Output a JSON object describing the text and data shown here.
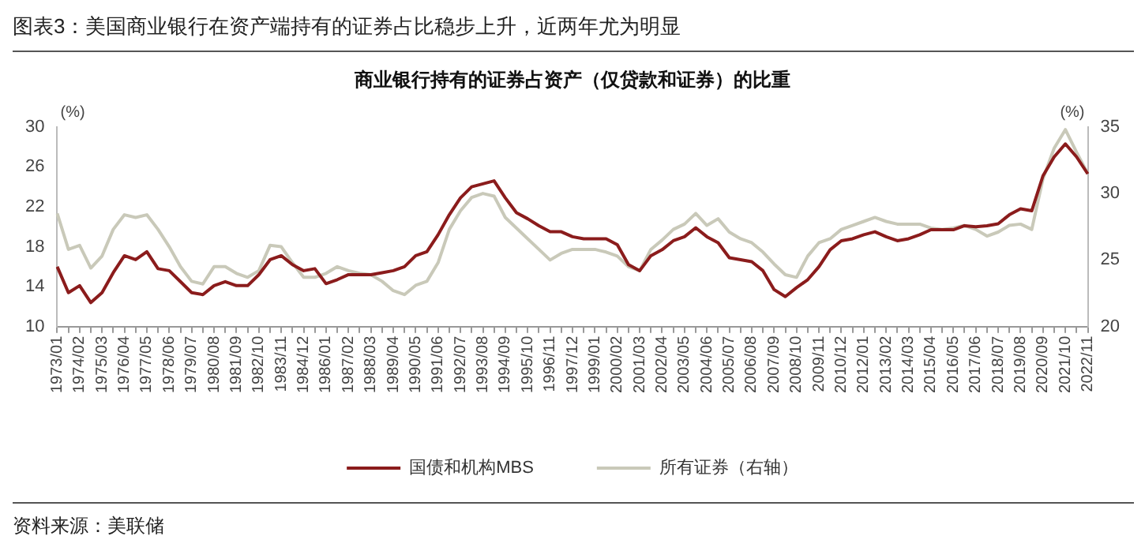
{
  "chart_data": {
    "type": "line",
    "title": "图表3：美国商业银行在资产端持有的证券占比稳步上升，近两年尤为明显",
    "subtitle": "商业银行持有的证券占资产（仅贷款和证券）的比重",
    "ylabel": "(%)",
    "y2label": "(%)",
    "annotations": [
      "资料来源：美联储"
    ],
    "categories": [
      "1973/01",
      null,
      "1974/02",
      null,
      "1975/03",
      null,
      "1976/04",
      null,
      "1977/05",
      null,
      "1978/06",
      null,
      "1979/07",
      null,
      "1980/08",
      null,
      "1981/09",
      null,
      "1982/10",
      null,
      "1983/11",
      null,
      "1984/12",
      null,
      "1986/01",
      null,
      "1987/02",
      null,
      "1988/03",
      null,
      "1989/04",
      null,
      "1990/05",
      null,
      "1991/06",
      null,
      "1992/07",
      null,
      "1993/08",
      null,
      "1994/09",
      null,
      "1995/10",
      null,
      "1996/11",
      null,
      "1997/12",
      null,
      "1999/01",
      null,
      "2000/02",
      null,
      "2001/03",
      null,
      "2002/04",
      null,
      "2003/05",
      null,
      "2004/06",
      null,
      "2005/07",
      null,
      "2006/08",
      null,
      "2007/09",
      null,
      "2008/10",
      null,
      "2009/11",
      null,
      "2010/12",
      null,
      "2012/01",
      null,
      "2013/02",
      null,
      "2014/03",
      null,
      "2015/04",
      null,
      "2016/05",
      null,
      "2017/06",
      null,
      "2018/07",
      null,
      "2019/08",
      null,
      "2020/09",
      null,
      "2021/10",
      null,
      "2022/11"
    ],
    "series": [
      {
        "name": "国债和机构MBS",
        "color": "#8b1c1c",
        "values": [
          16.0,
          13.4,
          14.1,
          12.4,
          13.4,
          15.4,
          17.1,
          16.7,
          17.5,
          15.8,
          15.6,
          14.5,
          13.4,
          13.2,
          14.1,
          14.5,
          14.1,
          14.1,
          15.2,
          16.7,
          17.1,
          16.2,
          15.6,
          15.8,
          14.3,
          14.7,
          15.2,
          15.2,
          15.2,
          15.4,
          15.6,
          16.0,
          17.1,
          17.5,
          19.2,
          21.2,
          22.9,
          24.0,
          24.3,
          24.6,
          22.9,
          21.4,
          20.8,
          20.1,
          19.5,
          19.5,
          19.0,
          18.8,
          18.8,
          18.8,
          18.2,
          16.2,
          15.6,
          17.1,
          17.7,
          18.6,
          19.0,
          19.9,
          19.0,
          18.4,
          16.9,
          16.7,
          16.5,
          15.6,
          13.7,
          13.0,
          13.9,
          14.7,
          16.0,
          17.7,
          18.6,
          18.8,
          19.2,
          19.5,
          19.0,
          18.6,
          18.8,
          19.2,
          19.7,
          19.7,
          19.7,
          20.1,
          20.0,
          20.1,
          20.3,
          21.2,
          21.8,
          21.6,
          25.1,
          27.0,
          28.3,
          27.0,
          25.3
        ]
      },
      {
        "name": "所有证券（右轴）",
        "color": "#c9c9b9",
        "axis": "y2",
        "values": [
          28.5,
          25.8,
          26.1,
          24.4,
          25.3,
          27.3,
          28.4,
          28.2,
          28.4,
          27.3,
          26.0,
          24.5,
          23.4,
          23.2,
          24.5,
          24.5,
          24.0,
          23.7,
          24.2,
          26.1,
          26.0,
          24.8,
          23.7,
          23.7,
          24.0,
          24.5,
          24.2,
          24.0,
          23.9,
          23.4,
          22.7,
          22.4,
          23.1,
          23.4,
          24.8,
          27.3,
          28.7,
          29.7,
          30.0,
          29.8,
          28.2,
          27.4,
          26.6,
          25.8,
          25.0,
          25.5,
          25.8,
          25.8,
          25.8,
          25.6,
          25.3,
          24.5,
          24.2,
          25.8,
          26.5,
          27.3,
          27.7,
          28.5,
          27.6,
          28.1,
          27.1,
          26.6,
          26.3,
          25.6,
          24.7,
          23.9,
          23.7,
          25.3,
          26.3,
          26.6,
          27.3,
          27.6,
          27.9,
          28.2,
          27.9,
          27.7,
          27.7,
          27.7,
          27.4,
          27.3,
          27.4,
          27.6,
          27.3,
          26.8,
          27.1,
          27.6,
          27.7,
          27.3,
          31.1,
          33.4,
          34.8,
          33.1,
          31.5
        ]
      }
    ],
    "ylim": [
      10,
      30
    ],
    "yticks": [
      10,
      14,
      18,
      22,
      26,
      30
    ],
    "y2lim": [
      20,
      35
    ],
    "y2ticks": [
      20,
      25,
      30,
      35
    ],
    "legend": "bottom"
  }
}
